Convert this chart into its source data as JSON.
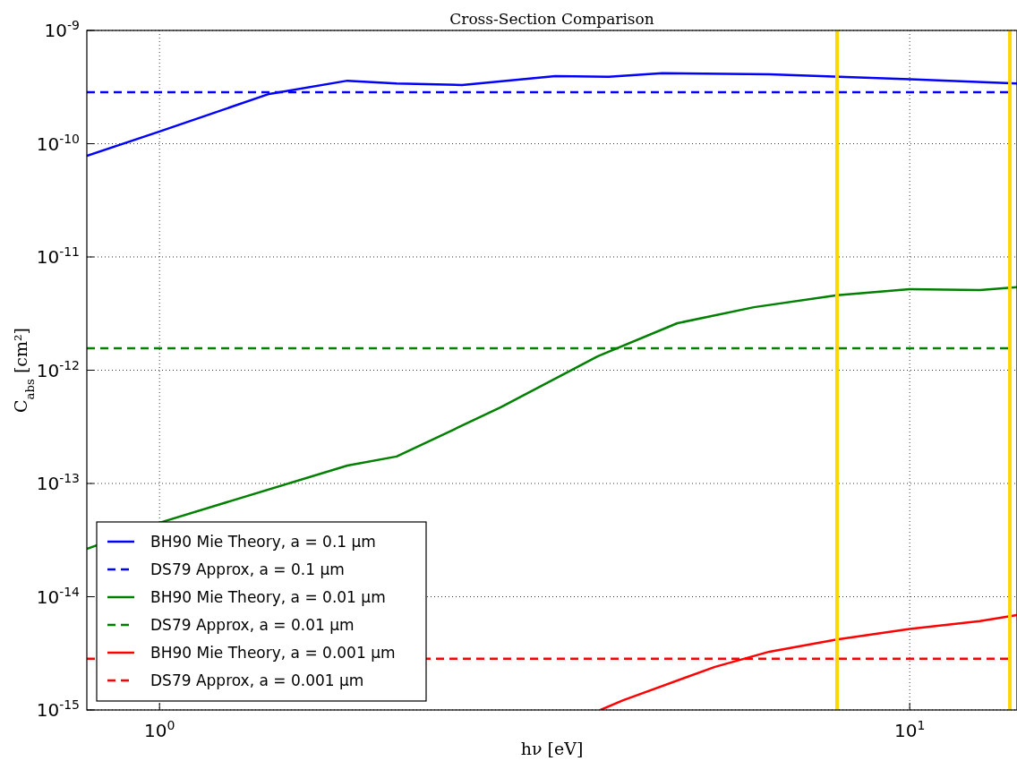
{
  "chart_data": {
    "type": "line",
    "title": "Cross-Section Comparison",
    "xlabel": "hν [eV]",
    "ylabel": "C$_{abs}$ [cm²]",
    "log": "xy",
    "grid": true,
    "legend": "bottom left",
    "marker": "none",
    "xlim": [
      0.8,
      13.9
    ],
    "ylim": [
      1e-15,
      1e-09
    ],
    "xticks": [
      {
        "value": 1,
        "label": "10$^{0}$"
      },
      {
        "value": 10,
        "label": "10$^{1}$"
      }
    ],
    "yticks": [
      {
        "value": 1e-15,
        "label": "10$^{-15}$"
      },
      {
        "value": 1e-14,
        "label": "10$^{-14}$"
      },
      {
        "value": 1e-13,
        "label": "10$^{-13}$"
      },
      {
        "value": 1e-12,
        "label": "10$^{-12}$"
      },
      {
        "value": 1e-11,
        "label": "10$^{-11}$"
      },
      {
        "value": 1e-10,
        "label": "10$^{-10}$"
      },
      {
        "value": 1e-09,
        "label": "10$^{-9}$"
      }
    ],
    "ref_lines": [
      {
        "axis": "x",
        "value": 8,
        "label": null,
        "color": "#ffd700"
      },
      {
        "axis": "x",
        "value": 13.6,
        "label": null,
        "color": "#ffd700"
      }
    ],
    "series": [
      {
        "name": "BH90 Mie Theory, a = 0.1 μm",
        "color": "#0000ff",
        "line_style": "solid",
        "x": [
          0.8,
          1.0,
          1.4,
          1.78,
          2.07,
          2.53,
          3.37,
          3.97,
          4.68,
          6.5,
          10,
          13.9
        ],
        "values": [
          7.8e-11,
          1.28e-10,
          2.75e-10,
          3.6e-10,
          3.4e-10,
          3.3e-10,
          3.95e-10,
          3.9e-10,
          4.2e-10,
          4.1e-10,
          3.7e-10,
          3.4e-10
        ]
      },
      {
        "name": "DS79 Approx, a = 0.1 μm",
        "color": "#0000ff",
        "line_style": "dashed",
        "x": [
          0.8,
          13.6
        ],
        "values": [
          2.85e-10,
          2.85e-10
        ]
      },
      {
        "name": "BH90 Mie Theory, a = 0.01 μm",
        "color": "#008000",
        "line_style": "solid",
        "x": [
          0.8,
          1.0,
          1.78,
          2.07,
          2.85,
          3.84,
          4.9,
          6.2,
          8,
          10,
          12.4,
          13.9
        ],
        "values": [
          2.65e-14,
          4.5e-14,
          1.44e-13,
          1.73e-13,
          4.7e-13,
          1.33e-12,
          2.6e-12,
          3.6e-12,
          4.6e-12,
          5.2e-12,
          5.1e-12,
          5.4e-12
        ]
      },
      {
        "name": "DS79 Approx, a = 0.01 μm",
        "color": "#008000",
        "line_style": "dashed",
        "x": [
          0.8,
          13.6
        ],
        "values": [
          1.56e-12,
          1.56e-12
        ]
      },
      {
        "name": "BH90 Mie Theory, a = 0.001 μm",
        "color": "#ff0000",
        "line_style": "solid",
        "x": [
          3.87,
          4.15,
          5.5,
          6.5,
          8,
          10,
          12.4,
          13.9
        ],
        "values": [
          1e-15,
          1.22e-15,
          2.4e-15,
          3.27e-15,
          4.2e-15,
          5.2e-15,
          6.1e-15,
          6.9e-15
        ]
      },
      {
        "name": "DS79 Approx, a = 0.001 μm",
        "color": "#ff0000",
        "line_style": "dashed",
        "x": [
          0.8,
          13.6
        ],
        "values": [
          2.83e-15,
          2.83e-15
        ]
      }
    ]
  }
}
